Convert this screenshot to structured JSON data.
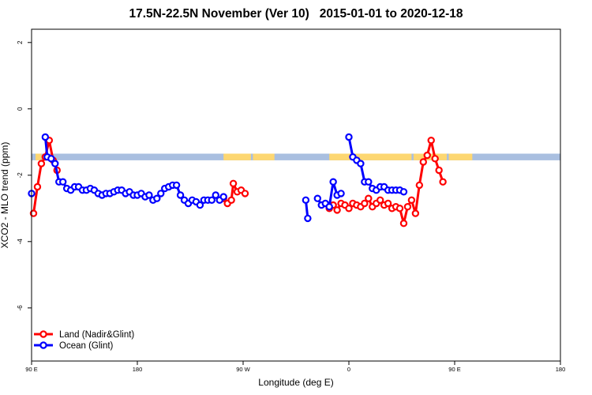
{
  "chart_data": {
    "type": "line",
    "title": "17.5N-22.5N November (Ver 10)   2015-01-01 to 2020-12-18",
    "xlabel": "Longitude (deg E)",
    "ylabel": "XCO2 - MLO trend (ppm)",
    "xlim": [
      -90,
      180
    ],
    "ylim": [
      -7.6,
      2.4
    ],
    "x_ticks": [
      {
        "value": -90,
        "label": "90 E"
      },
      {
        "value": -36,
        "label": "180"
      },
      {
        "value": 18,
        "label": "90 W"
      },
      {
        "value": 72,
        "label": "0"
      },
      {
        "value": 126,
        "label": "90 E"
      },
      {
        "value": 180,
        "label": "180"
      }
    ],
    "y_ticks": [
      {
        "value": 2,
        "label": "2"
      },
      {
        "value": 0,
        "label": "0"
      },
      {
        "value": -2,
        "label": "-2"
      },
      {
        "value": -4,
        "label": "-4"
      },
      {
        "value": -6,
        "label": "-6"
      }
    ],
    "grid": false,
    "legend_position": "bottom-left",
    "land_mask": {
      "y_top": -1.35,
      "y_bottom": -1.55,
      "ocean_color": "#a9bfe0",
      "land_color": "#fdd772",
      "land_ranges": [
        [
          -88,
          -85
        ],
        [
          8,
          22
        ],
        [
          23,
          34
        ],
        [
          62,
          104
        ],
        [
          105,
          122
        ],
        [
          123,
          135
        ]
      ]
    },
    "series": [
      {
        "name": "Land (Nadir&Glint)",
        "color": "#ff0000",
        "points": [
          [
            -89,
            -3.15
          ],
          [
            -87,
            -2.35
          ],
          [
            -85,
            -1.65
          ],
          [
            -83,
            -1.45
          ],
          [
            -81,
            -0.95
          ],
          [
            -79,
            -1.55
          ],
          [
            -77,
            -1.85
          ],
          [
            8,
            -2.7
          ],
          [
            10,
            -2.85
          ],
          [
            12,
            -2.75
          ],
          [
            13,
            -2.25
          ],
          [
            15,
            -2.5
          ],
          [
            17,
            -2.45
          ],
          [
            19,
            -2.55
          ],
          [
            62,
            -3.0
          ],
          [
            64,
            -2.9
          ],
          [
            66,
            -3.05
          ],
          [
            68,
            -2.85
          ],
          [
            70,
            -2.9
          ],
          [
            72,
            -3.0
          ],
          [
            74,
            -2.85
          ],
          [
            76,
            -2.9
          ],
          [
            78,
            -2.95
          ],
          [
            80,
            -2.85
          ],
          [
            82,
            -2.7
          ],
          [
            84,
            -2.95
          ],
          [
            86,
            -2.85
          ],
          [
            88,
            -2.75
          ],
          [
            90,
            -2.9
          ],
          [
            92,
            -2.85
          ],
          [
            94,
            -3.0
          ],
          [
            96,
            -2.95
          ],
          [
            98,
            -3.0
          ],
          [
            100,
            -3.45
          ],
          [
            102,
            -2.95
          ],
          [
            104,
            -2.75
          ],
          [
            106,
            -3.15
          ],
          [
            108,
            -2.3
          ],
          [
            110,
            -1.6
          ],
          [
            112,
            -1.4
          ],
          [
            114,
            -0.95
          ],
          [
            116,
            -1.5
          ],
          [
            118,
            -1.85
          ],
          [
            120,
            -2.2
          ]
        ]
      },
      {
        "name": "Ocean (Glint)",
        "color": "#0000ff",
        "points": [
          [
            -90,
            -2.55
          ],
          [
            -83,
            -0.85
          ],
          [
            -82,
            -1.45
          ],
          [
            -80,
            -1.5
          ],
          [
            -78,
            -1.65
          ],
          [
            -76,
            -2.2
          ],
          [
            -74,
            -2.2
          ],
          [
            -72,
            -2.4
          ],
          [
            -70,
            -2.45
          ],
          [
            -68,
            -2.35
          ],
          [
            -66,
            -2.35
          ],
          [
            -64,
            -2.45
          ],
          [
            -62,
            -2.45
          ],
          [
            -60,
            -2.4
          ],
          [
            -58,
            -2.45
          ],
          [
            -56,
            -2.55
          ],
          [
            -54,
            -2.6
          ],
          [
            -52,
            -2.55
          ],
          [
            -50,
            -2.55
          ],
          [
            -48,
            -2.5
          ],
          [
            -46,
            -2.45
          ],
          [
            -44,
            -2.45
          ],
          [
            -42,
            -2.55
          ],
          [
            -40,
            -2.5
          ],
          [
            -38,
            -2.6
          ],
          [
            -36,
            -2.6
          ],
          [
            -34,
            -2.55
          ],
          [
            -32,
            -2.65
          ],
          [
            -30,
            -2.6
          ],
          [
            -28,
            -2.75
          ],
          [
            -26,
            -2.7
          ],
          [
            -24,
            -2.55
          ],
          [
            -22,
            -2.4
          ],
          [
            -20,
            -2.35
          ],
          [
            -18,
            -2.3
          ],
          [
            -16,
            -2.3
          ],
          [
            -14,
            -2.6
          ],
          [
            -12,
            -2.75
          ],
          [
            -10,
            -2.85
          ],
          [
            -8,
            -2.75
          ],
          [
            -6,
            -2.8
          ],
          [
            -4,
            -2.9
          ],
          [
            -2,
            -2.75
          ],
          [
            0,
            -2.75
          ],
          [
            2,
            -2.75
          ],
          [
            4,
            -2.6
          ],
          [
            6,
            -2.75
          ],
          [
            8,
            -2.65
          ],
          [
            50,
            -2.75
          ],
          [
            51,
            -3.3
          ],
          [
            56,
            -2.7
          ],
          [
            58,
            -2.9
          ],
          [
            60,
            -2.85
          ],
          [
            62,
            -2.95
          ],
          [
            64,
            -2.2
          ],
          [
            66,
            -2.6
          ],
          [
            68,
            -2.55
          ],
          [
            72,
            -0.85
          ],
          [
            74,
            -1.45
          ],
          [
            76,
            -1.55
          ],
          [
            78,
            -1.65
          ],
          [
            80,
            -2.2
          ],
          [
            82,
            -2.2
          ],
          [
            84,
            -2.4
          ],
          [
            86,
            -2.45
          ],
          [
            88,
            -2.35
          ],
          [
            90,
            -2.35
          ],
          [
            92,
            -2.45
          ],
          [
            94,
            -2.45
          ],
          [
            96,
            -2.45
          ],
          [
            98,
            -2.45
          ],
          [
            100,
            -2.5
          ]
        ]
      }
    ]
  }
}
